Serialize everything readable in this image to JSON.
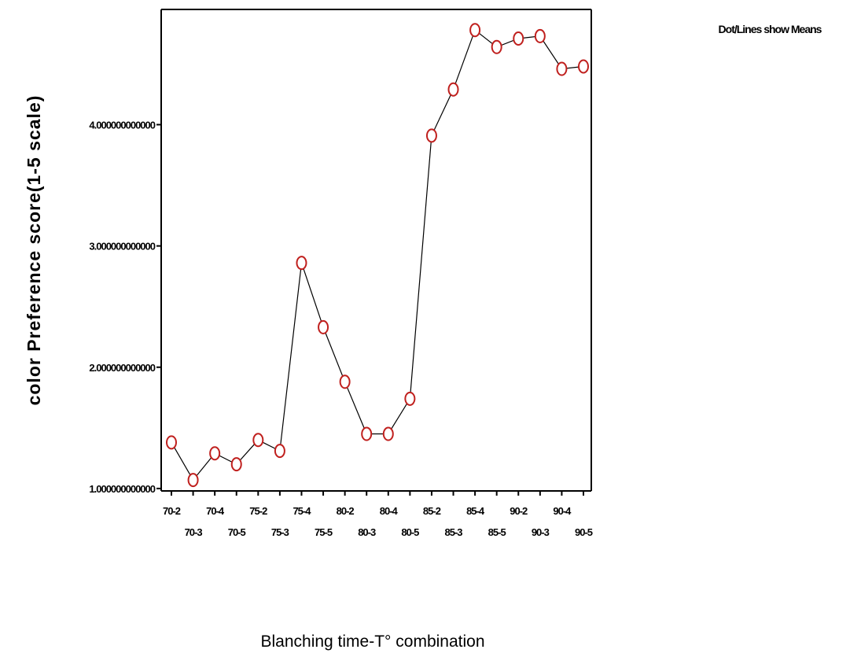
{
  "chart_data": {
    "type": "line",
    "xlabel": "Blanching time-T° combination",
    "ylabel": "color Preference score(1-5 scale)",
    "annotation": "Dot/Lines show Means",
    "categories": [
      "70-2",
      "70-3",
      "70-4",
      "70-5",
      "75-2",
      "75-3",
      "75-4",
      "75-5",
      "80-2",
      "80-3",
      "80-4",
      "80-5",
      "85-2",
      "85-3",
      "85-4",
      "85-5",
      "90-2",
      "90-3",
      "90-4",
      "90-5"
    ],
    "series": [
      {
        "values": [
          1.38,
          1.07,
          1.29,
          1.2,
          1.4,
          1.31,
          2.86,
          2.33,
          1.88,
          1.45,
          1.45,
          1.74,
          3.91,
          4.29,
          4.78,
          4.64,
          4.71,
          4.73,
          4.46,
          4.48
        ]
      }
    ],
    "yticks": [
      1,
      2,
      3,
      4
    ],
    "ytick_labels": [
      "1.000000000000",
      "2.000000000000",
      "3.000000000000",
      "4.000000000000"
    ],
    "ylim": [
      0.98,
      4.95
    ],
    "grid": false,
    "legend": "none",
    "marker_color": "#c0201e",
    "line_color": "#000000"
  }
}
